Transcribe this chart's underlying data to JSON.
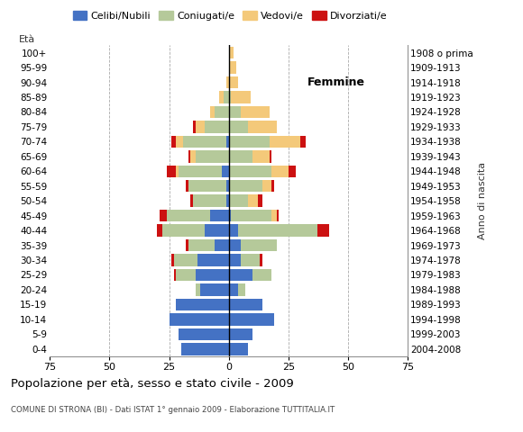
{
  "title": "Popolazione per età, sesso e stato civile - 2009",
  "subtitle": "COMUNE DI STRONA (BI) - Dati ISTAT 1° gennaio 2009 - Elaborazione TUTTITALIA.IT",
  "age_label": "Età",
  "birth_label": "Anno di nascita",
  "femmine_label": "Femmine",
  "xlim": 75,
  "colors": {
    "celibe": "#4472c4",
    "coniugato": "#b5c99a",
    "vedovo": "#f4c97a",
    "divorziato": "#cc1111"
  },
  "legend_labels": [
    "Celibi/Nubili",
    "Coniugati/e",
    "Vedovi/e",
    "Divorziati/e"
  ],
  "age_groups": [
    "0-4",
    "5-9",
    "10-14",
    "15-19",
    "20-24",
    "25-29",
    "30-34",
    "35-39",
    "40-44",
    "45-49",
    "50-54",
    "55-59",
    "60-64",
    "65-69",
    "70-74",
    "75-79",
    "80-84",
    "85-89",
    "90-94",
    "95-99",
    "100+"
  ],
  "birth_years": [
    "2004-2008",
    "1999-2003",
    "1994-1998",
    "1989-1993",
    "1984-1988",
    "1979-1983",
    "1974-1978",
    "1969-1973",
    "1964-1968",
    "1959-1963",
    "1954-1958",
    "1949-1953",
    "1944-1948",
    "1939-1943",
    "1934-1938",
    "1929-1933",
    "1924-1928",
    "1919-1923",
    "1914-1918",
    "1909-1913",
    "1908 o prima"
  ],
  "males": {
    "celibe": [
      20,
      21,
      25,
      22,
      12,
      14,
      13,
      6,
      10,
      8,
      1,
      1,
      3,
      0,
      1,
      0,
      0,
      0,
      0,
      0,
      0
    ],
    "coniugato": [
      0,
      0,
      0,
      0,
      2,
      8,
      10,
      11,
      18,
      18,
      14,
      16,
      18,
      14,
      18,
      10,
      6,
      2,
      0,
      0,
      0
    ],
    "vedovo": [
      0,
      0,
      0,
      0,
      0,
      0,
      0,
      0,
      0,
      0,
      0,
      0,
      1,
      2,
      3,
      4,
      2,
      2,
      1,
      0,
      0
    ],
    "divorziato": [
      0,
      0,
      0,
      0,
      0,
      1,
      1,
      1,
      2,
      3,
      1,
      1,
      4,
      1,
      2,
      1,
      0,
      0,
      0,
      0,
      0
    ]
  },
  "females": {
    "nubile": [
      8,
      10,
      19,
      14,
      4,
      10,
      5,
      5,
      4,
      1,
      0,
      0,
      0,
      0,
      0,
      0,
      0,
      0,
      0,
      0,
      0
    ],
    "coniugata": [
      0,
      0,
      0,
      0,
      3,
      8,
      8,
      15,
      33,
      17,
      8,
      14,
      18,
      10,
      17,
      8,
      5,
      1,
      0,
      0,
      0
    ],
    "vedova": [
      0,
      0,
      0,
      0,
      0,
      0,
      0,
      0,
      0,
      2,
      4,
      4,
      7,
      7,
      13,
      12,
      12,
      8,
      4,
      3,
      2
    ],
    "divorziata": [
      0,
      0,
      0,
      0,
      0,
      0,
      1,
      0,
      5,
      1,
      2,
      1,
      3,
      1,
      2,
      0,
      0,
      0,
      0,
      0,
      0
    ]
  }
}
